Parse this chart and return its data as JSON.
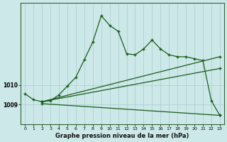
{
  "background_color": "#cce8e8",
  "grid_color": "#aacccc",
  "line_color": "#1a5c1a",
  "title": "Graphe pression niveau de la mer (hPa)",
  "xlim": [
    -0.5,
    23.5
  ],
  "ylim": [
    1008.0,
    1014.2
  ],
  "yticks": [
    1009,
    1010
  ],
  "xticks": [
    0,
    1,
    2,
    3,
    4,
    5,
    6,
    7,
    8,
    9,
    10,
    11,
    12,
    13,
    14,
    15,
    16,
    17,
    18,
    19,
    20,
    21,
    22,
    23
  ],
  "series1_x": [
    0,
    1,
    2,
    3,
    4,
    5,
    6,
    7,
    8,
    9,
    10,
    11,
    12,
    13,
    14,
    15,
    16,
    17,
    18,
    19,
    20,
    21,
    22,
    23
  ],
  "series1_y": [
    1009.55,
    1009.25,
    1009.15,
    1009.2,
    1009.5,
    1009.95,
    1010.4,
    1011.3,
    1012.2,
    1013.55,
    1013.05,
    1012.75,
    1011.6,
    1011.55,
    1011.85,
    1012.3,
    1011.85,
    1011.55,
    1011.45,
    1011.45,
    1011.35,
    1011.25,
    1009.2,
    1008.45
  ],
  "series2_x": [
    2,
    23
  ],
  "series2_y": [
    1009.15,
    1011.45
  ],
  "series3_x": [
    2,
    23
  ],
  "series3_y": [
    1009.15,
    1010.85
  ],
  "series4_x": [
    2,
    23
  ],
  "series4_y": [
    1009.05,
    1008.45
  ]
}
